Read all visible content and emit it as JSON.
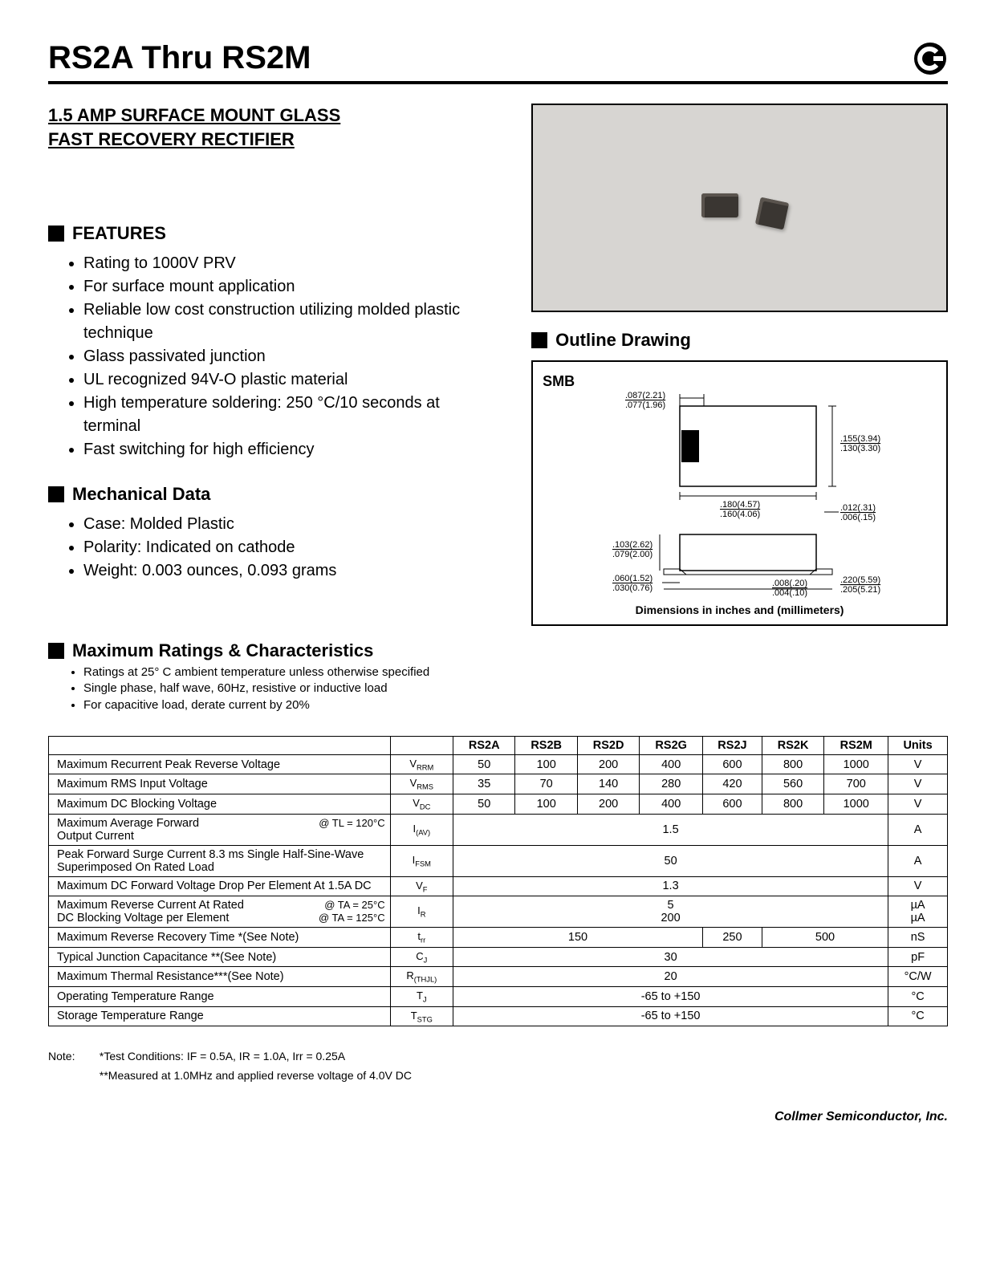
{
  "header": {
    "title": "RS2A Thru RS2M",
    "subtitle_line1": "1.5 AMP SURFACE MOUNT GLASS",
    "subtitle_line2": "FAST RECOVERY RECTIFIER"
  },
  "features": {
    "heading": "FEATURES",
    "items": [
      "Rating to 1000V PRV",
      "For surface mount application",
      "Reliable low cost construction utilizing molded plastic technique",
      "Glass passivated junction",
      "UL recognized 94V-O plastic material",
      "High temperature soldering: 250 °C/10 seconds at terminal",
      "Fast switching for high efficiency"
    ]
  },
  "mechanical": {
    "heading": "Mechanical Data",
    "items": [
      "Case: Molded Plastic",
      "Polarity: Indicated on cathode",
      "Weight: 0.003 ounces, 0.093 grams"
    ]
  },
  "outline": {
    "heading": "Outline Drawing",
    "package_label": "SMB",
    "dims": {
      "d1": ".087(2.21)",
      "d1b": ".077(1.96)",
      "d2": ".155(3.94)",
      "d2b": ".130(3.30)",
      "d3": ".180(4.57)",
      "d3b": ".160(4.06)",
      "d4": ".012(.31)",
      "d4b": ".006(.15)",
      "d5": ".103(2.62)",
      "d5b": ".079(2.00)",
      "d6": ".060(1.52)",
      "d6b": ".030(0.76)",
      "d7": ".008(.20)",
      "d7b": ".004(.10)",
      "d8": ".220(5.59)",
      "d8b": ".205(5.21)"
    },
    "caption": "Dimensions in inches and (millimeters)"
  },
  "ratings": {
    "heading": "Maximum Ratings & Characteristics",
    "notes_top": [
      "Ratings at 25° C ambient temperature unless otherwise specified",
      "Single phase, half wave, 60Hz, resistive or inductive load",
      "For capacitive load, derate current by 20%"
    ],
    "columns": [
      "RS2A",
      "RS2B",
      "RS2D",
      "RS2G",
      "RS2J",
      "RS2K",
      "RS2M"
    ],
    "units_label": "Units",
    "rows": [
      {
        "param": "Maximum Recurrent Peak Reverse Voltage",
        "sym": "V",
        "sub": "RRM",
        "vals": [
          "50",
          "100",
          "200",
          "400",
          "600",
          "800",
          "1000"
        ],
        "unit": "V"
      },
      {
        "param": "Maximum RMS Input Voltage",
        "sym": "V",
        "sub": "RMS",
        "vals": [
          "35",
          "70",
          "140",
          "280",
          "420",
          "560",
          "700"
        ],
        "unit": "V"
      },
      {
        "param": "Maximum DC Blocking Voltage",
        "sym": "V",
        "sub": "DC",
        "vals": [
          "50",
          "100",
          "200",
          "400",
          "600",
          "800",
          "1000"
        ],
        "unit": "V"
      },
      {
        "param": "Maximum Average Forward Output Current",
        "cond": "@ TL = 120°C",
        "sym": "I",
        "sub": "(AV)",
        "span": "1.5",
        "unit": "A"
      },
      {
        "param": "Peak Forward Surge Current 8.3 ms Single Half-Sine-Wave Superimposed On Rated Load",
        "sym": "I",
        "sub": "FSM",
        "span": "50",
        "unit": "A"
      },
      {
        "param": "Maximum DC Forward Voltage Drop Per Element At 1.5A DC",
        "sym": "V",
        "sub": "F",
        "span": "1.3",
        "unit": "V"
      },
      {
        "param": "Maximum Reverse Current At Rated DC Blocking Voltage per Element",
        "cond": "@ TA = 25°C",
        "cond2": "@ TA = 125°C",
        "sym": "I",
        "sub": "R",
        "span": "5",
        "span2": "200",
        "unit": "µA",
        "unit2": "µA"
      },
      {
        "param": "Maximum Reverse Recovery Time *(See Note)",
        "sym": "t",
        "sub": "rr",
        "groups": [
          [
            "150",
            4
          ],
          [
            "250",
            1
          ],
          [
            "500",
            2
          ]
        ],
        "unit": "nS"
      },
      {
        "param": "Typical Junction Capacitance **(See Note)",
        "sym": "C",
        "sub": "J",
        "span": "30",
        "unit": "pF"
      },
      {
        "param": "Maximum Thermal Resistance***(See Note)",
        "sym": "R",
        "sub": "(THJL)",
        "span": "20",
        "unit": "°C/W"
      },
      {
        "param": "Operating Temperature Range",
        "sym": "T",
        "sub": "J",
        "span": "-65 to +150",
        "unit": "°C"
      },
      {
        "param": "Storage Temperature Range",
        "sym": "T",
        "sub": "STG",
        "span": "-65 to +150",
        "unit": "°C"
      }
    ]
  },
  "notes": {
    "label": "Note:",
    "n1": "*Test  Conditions: IF = 0.5A, IR = 1.0A, Irr = 0.25A",
    "n2": "**Measured at 1.0MHz and applied reverse voltage of 4.0V DC"
  },
  "footer": "Collmer Semiconductor, Inc."
}
